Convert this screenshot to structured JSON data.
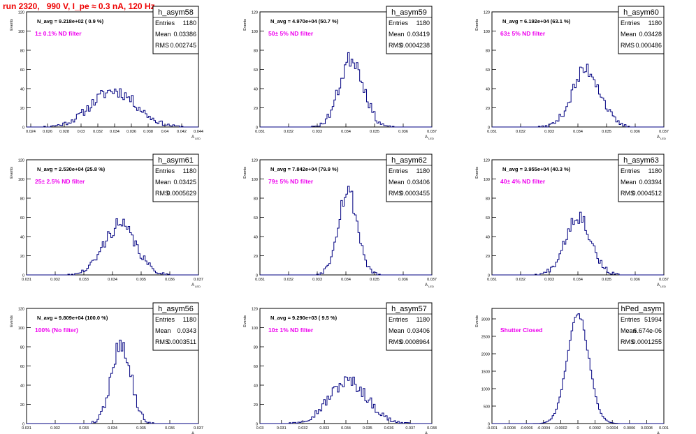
{
  "page_title": "run 2320,   990 V, I_pe ≈ 0.3 nA, 120 Hz",
  "colors": {
    "title": "#ee0000",
    "hist_line": "#000080",
    "filter_text": "#ee00ee",
    "axes": "#000000"
  },
  "stat_labels": {
    "entries": "Entries",
    "mean": "Mean",
    "rms": "RMS"
  },
  "y_axis_label": "Events",
  "x_axis_label": "A",
  "x_axis_label_sub": "LED",
  "chart_data": [
    {
      "type": "bar",
      "name": "h_asym58",
      "navg": "N_avg = 9.218e+02 ( 0.9 %)",
      "filter": "1± 0.1% ND filter",
      "entries": "1180",
      "mean": "0.03386",
      "rms": "0.002745",
      "xlim": [
        0.0235,
        0.044
      ],
      "ylim": [
        0,
        120
      ],
      "xticks": [
        "0.024",
        "0.026",
        "0.028",
        "0.03",
        "0.032",
        "0.034",
        "0.036",
        "0.038",
        "0.04",
        "0.042",
        "0.044"
      ],
      "yticks": [
        "0",
        "20",
        "40",
        "60",
        "80",
        "100",
        "120"
      ],
      "peak": 0.0339,
      "sigma": 0.0027,
      "height": 38,
      "seed": 11
    },
    {
      "type": "bar",
      "name": "h_asym59",
      "navg": "N_avg = 4.970e+04 (50.7 %)",
      "filter": "50± 5% ND filter",
      "entries": "1180",
      "mean": "0.03419",
      "rms": "0.0004238",
      "xlim": [
        0.031,
        0.037
      ],
      "ylim": [
        0,
        120
      ],
      "xticks": [
        "0.031",
        "0.032",
        "0.033",
        "0.034",
        "0.035",
        "0.036",
        "0.037"
      ],
      "yticks": [
        "0",
        "20",
        "40",
        "60",
        "80",
        "100",
        "120"
      ],
      "peak": 0.0342,
      "sigma": 0.00042,
      "height": 72,
      "seed": 23
    },
    {
      "type": "bar",
      "name": "h_asym60",
      "navg": "N_avg = 6.192e+04 (63.1 %)",
      "filter": "63± 5% ND filter",
      "entries": "1180",
      "mean": "0.03428",
      "rms": "0.000486",
      "xlim": [
        0.031,
        0.037
      ],
      "ylim": [
        0,
        120
      ],
      "xticks": [
        "0.031",
        "0.032",
        "0.033",
        "0.034",
        "0.035",
        "0.036",
        "0.037"
      ],
      "yticks": [
        "0",
        "20",
        "40",
        "60",
        "80",
        "100",
        "120"
      ],
      "peak": 0.0343,
      "sigma": 0.00049,
      "height": 60,
      "seed": 37
    },
    {
      "type": "bar",
      "name": "h_asym61",
      "navg": "N_avg = 2.530e+04 (25.8 %)",
      "filter": "25± 2.5% ND filter",
      "entries": "1180",
      "mean": "0.03425",
      "rms": "0.0005629",
      "xlim": [
        0.031,
        0.037
      ],
      "ylim": [
        0,
        120
      ],
      "xticks": [
        "0.031",
        "0.032",
        "0.033",
        "0.034",
        "0.035",
        "0.036",
        "0.037"
      ],
      "yticks": [
        "0",
        "20",
        "40",
        "60",
        "80",
        "100",
        "120"
      ],
      "peak": 0.03425,
      "sigma": 0.00056,
      "height": 52,
      "seed": 41
    },
    {
      "type": "bar",
      "name": "h_asym62",
      "navg": "N_avg = 7.842e+04 (79.9 %)",
      "filter": "79± 5% ND filter",
      "entries": "1180",
      "mean": "0.03406",
      "rms": "0.0003455",
      "xlim": [
        0.031,
        0.037
      ],
      "ylim": [
        0,
        120
      ],
      "xticks": [
        "0.031",
        "0.032",
        "0.033",
        "0.034",
        "0.035",
        "0.036",
        "0.037"
      ],
      "yticks": [
        "0",
        "20",
        "40",
        "60",
        "80",
        "100",
        "120"
      ],
      "peak": 0.03406,
      "sigma": 0.00034,
      "height": 88,
      "seed": 53
    },
    {
      "type": "bar",
      "name": "h_asym63",
      "navg": "N_avg = 3.955e+04 (40.3 %)",
      "filter": "40± 4% ND filter",
      "entries": "1180",
      "mean": "0.03394",
      "rms": "0.0004512",
      "xlim": [
        0.031,
        0.037
      ],
      "ylim": [
        0,
        120
      ],
      "xticks": [
        "0.031",
        "0.032",
        "0.033",
        "0.034",
        "0.035",
        "0.036",
        "0.037"
      ],
      "yticks": [
        "0",
        "20",
        "40",
        "60",
        "80",
        "100",
        "120"
      ],
      "peak": 0.034,
      "sigma": 0.00045,
      "height": 62,
      "seed": 67
    },
    {
      "type": "bar",
      "name": "h_asym56",
      "navg": "N_avg = 9.809e+04 (100.0 %)",
      "filter": "100% (No filter)",
      "entries": "1180",
      "mean": "0.0343",
      "rms": "0.0003511",
      "xlim": [
        0.031,
        0.037
      ],
      "ylim": [
        0,
        120
      ],
      "xticks": [
        "0.031",
        "0.032",
        "0.033",
        "0.034",
        "0.035",
        "0.036",
        "0.037"
      ],
      "yticks": [
        "0",
        "20",
        "40",
        "60",
        "80",
        "100",
        "120"
      ],
      "peak": 0.0343,
      "sigma": 0.00034,
      "height": 84,
      "seed": 79
    },
    {
      "type": "bar",
      "name": "h_asym57",
      "navg": "N_avg = 9.290e+03 ( 9.5 %)",
      "filter": "10± 1% ND filter",
      "entries": "1180",
      "mean": "0.03406",
      "rms": "0.0008964",
      "xlim": [
        0.03,
        0.038
      ],
      "ylim": [
        0,
        120
      ],
      "xticks": [
        "0.03",
        "0.031",
        "0.032",
        "0.033",
        "0.034",
        "0.035",
        "0.036",
        "0.037",
        "0.038"
      ],
      "yticks": [
        "0",
        "20",
        "40",
        "60",
        "80",
        "100",
        "120"
      ],
      "peak": 0.0341,
      "sigma": 0.0009,
      "height": 44,
      "seed": 97
    },
    {
      "type": "bar",
      "name": "hPed_asym",
      "navg": "",
      "filter": "Shutter Closed",
      "entries": "51994",
      "mean": "6.674e-06",
      "rms": "0.0001255",
      "xlim": [
        -0.001,
        0.001
      ],
      "ylim": [
        0,
        3300
      ],
      "xticks": [
        "-0.001",
        "-0.0008",
        "-0.0006",
        "-0.0004",
        "-0.0002",
        "0",
        "0.0002",
        "0.0004",
        "0.0006",
        "0.0008",
        "0.001"
      ],
      "yticks": [
        "0",
        "500",
        "1000",
        "1500",
        "2000",
        "2500",
        "3000"
      ],
      "peak": 0.0,
      "sigma": 0.000125,
      "height": 3150,
      "seed": 101
    }
  ]
}
